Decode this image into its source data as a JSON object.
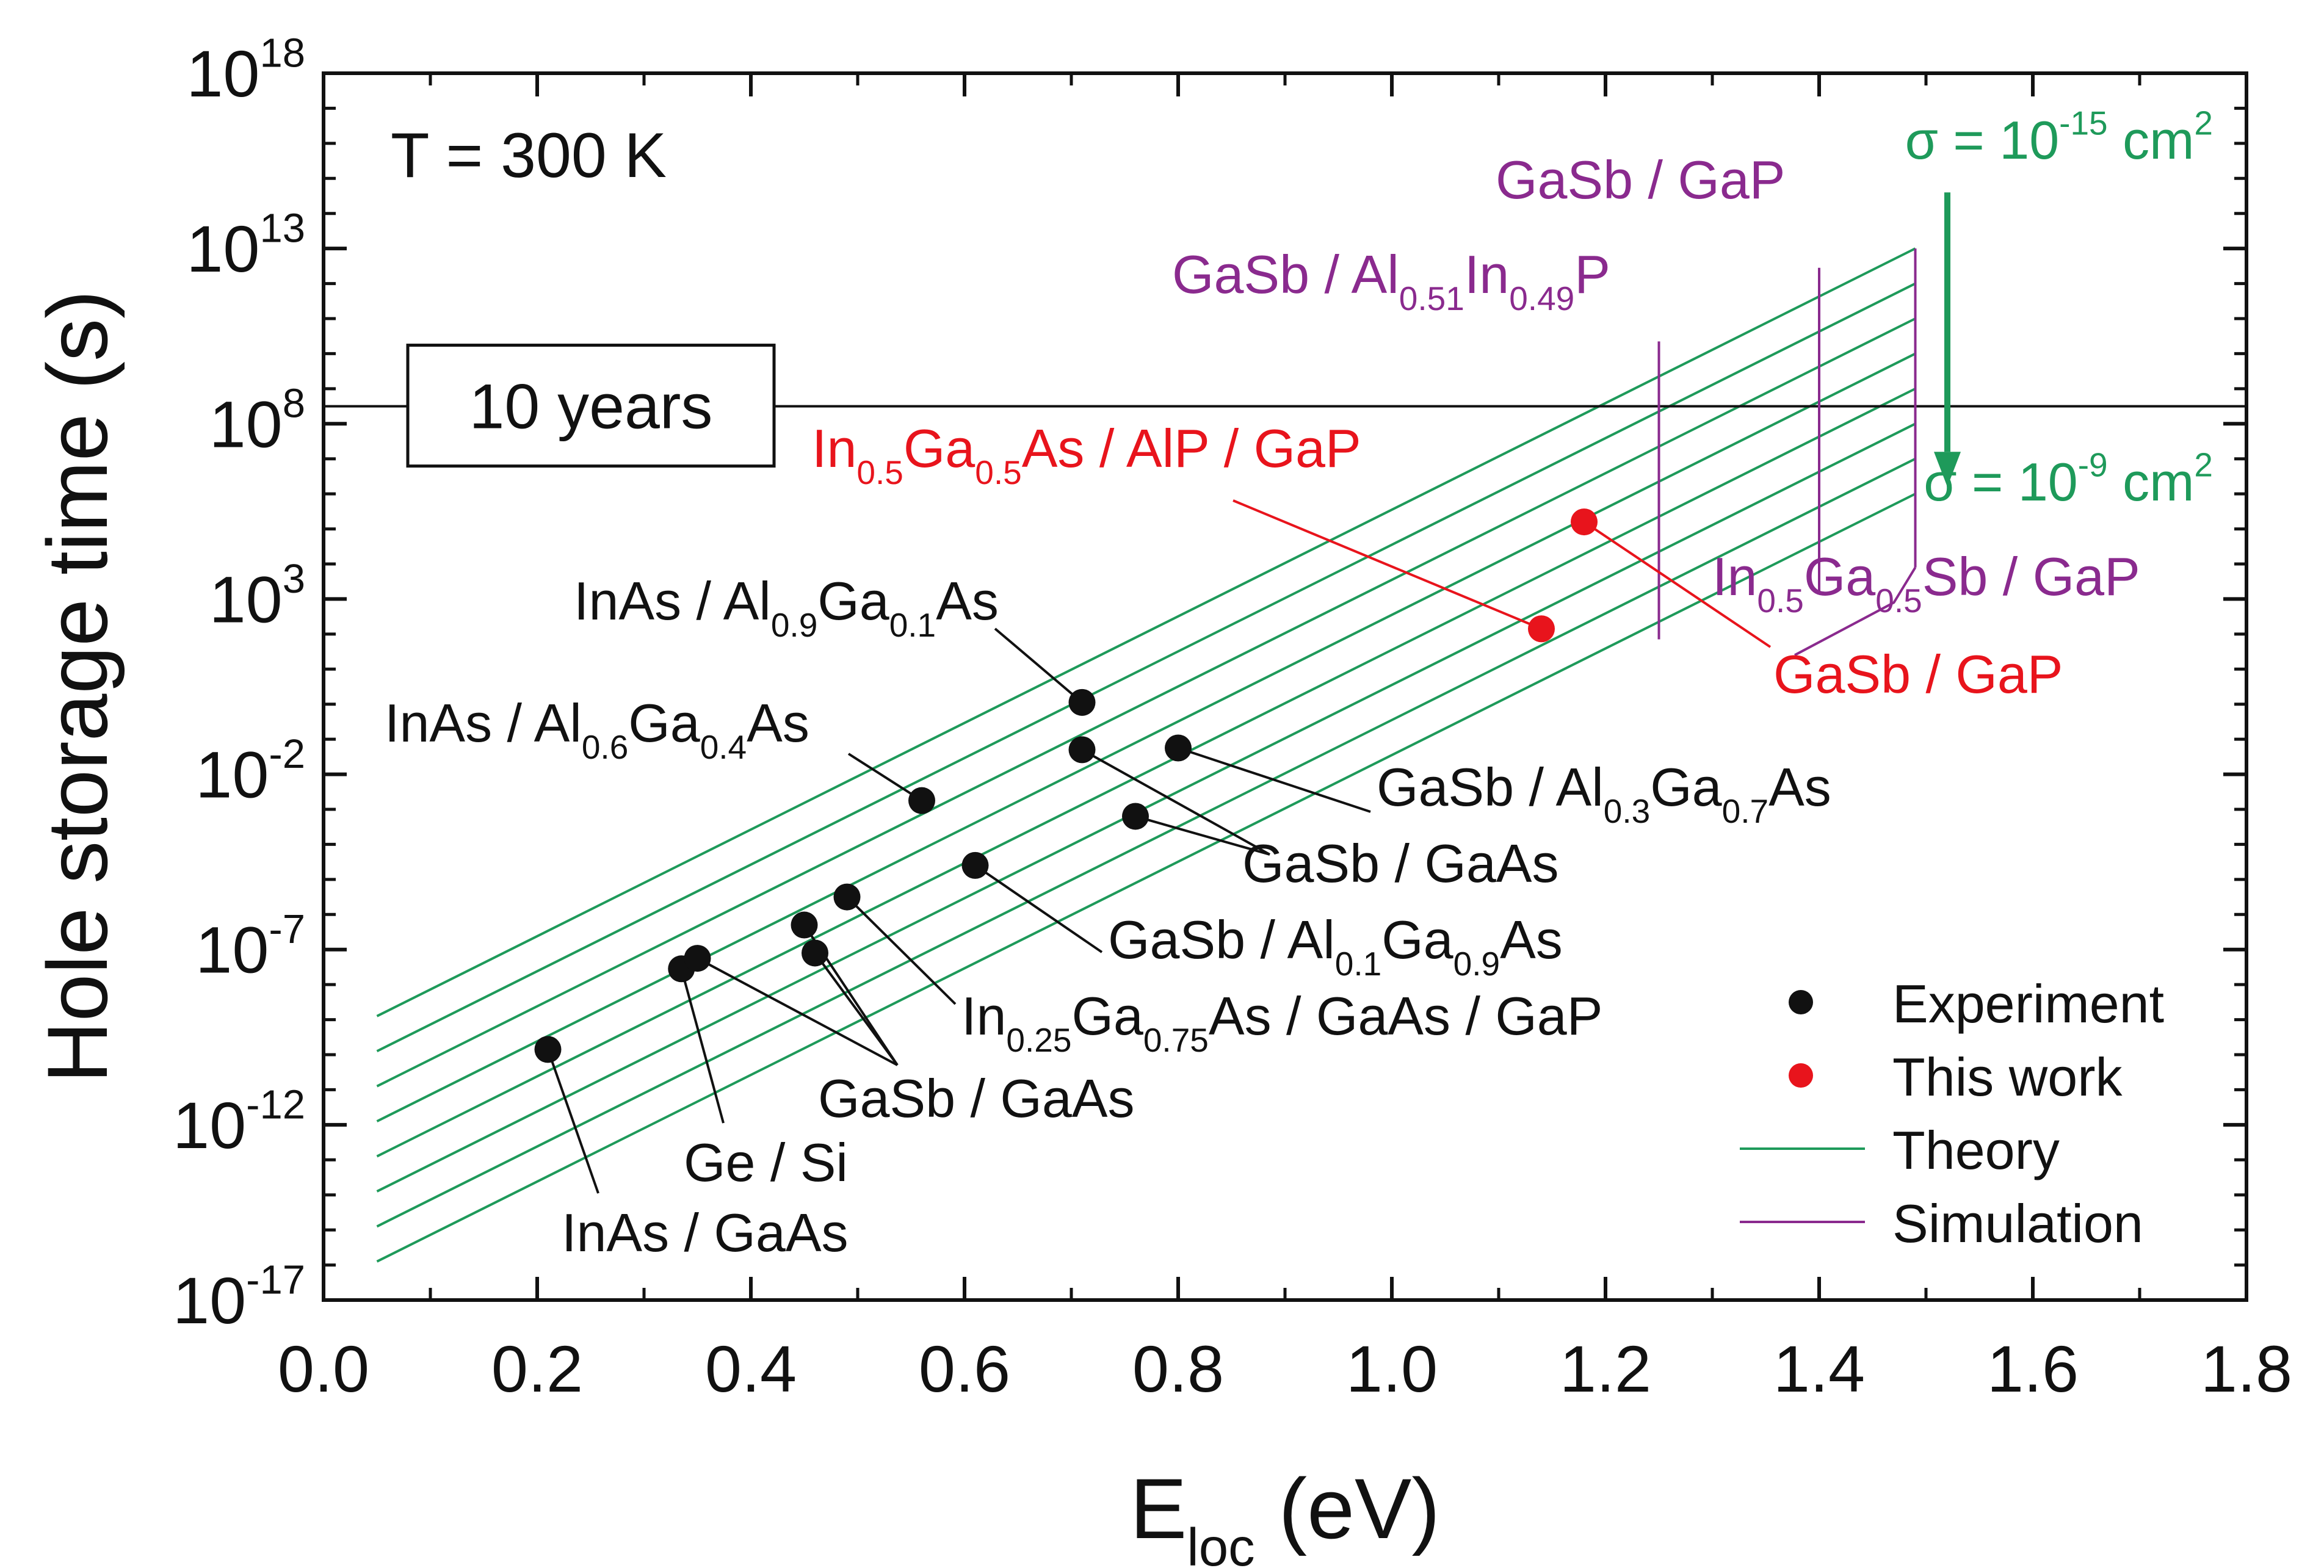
{
  "chart_data": {
    "type": "scatter",
    "title": "",
    "xlabel": {
      "main": "E",
      "sub": "loc",
      "rest": " (eV)"
    },
    "ylabel": "Hole storage time (s)",
    "xlim": [
      0.0,
      1.8
    ],
    "ylim_log10": [
      -17,
      18
    ],
    "y_scale": "log",
    "xticks": [
      "0.0",
      "0.2",
      "0.4",
      "0.6",
      "0.8",
      "1.0",
      "1.2",
      "1.4",
      "1.6",
      "1.8"
    ],
    "yticks": [
      {
        "base": "10",
        "exp": "18"
      },
      {
        "base": "10",
        "exp": "13"
      },
      {
        "base": "10",
        "exp": "8"
      },
      {
        "base": "10",
        "exp": "3"
      },
      {
        "base": "10",
        "exp": "-2"
      },
      {
        "base": "10",
        "exp": "-7"
      },
      {
        "base": "10",
        "exp": "-12"
      },
      {
        "base": "10",
        "exp": "-17"
      }
    ],
    "temperature_label": "T = 300 K",
    "ten_years_label": "10 years",
    "ten_years_log10": 8.5,
    "colors": {
      "experiment": "#111111",
      "this_work": "#e8141c",
      "theory": "#1e9a5a",
      "simulation": "#8a2a8e",
      "sigma": "#1e9a5a"
    },
    "legend": {
      "position": "lower-right",
      "items": [
        {
          "label": "Experiment",
          "kind": "dot",
          "color": "#111111"
        },
        {
          "label": "This work",
          "kind": "dot",
          "color": "#e8141c"
        },
        {
          "label": "Theory",
          "kind": "line",
          "color": "#1e9a5a"
        },
        {
          "label": "Simulation",
          "kind": "line",
          "color": "#8a2a8e"
        }
      ]
    },
    "theory_lines": {
      "x_range": [
        0.05,
        1.49
      ],
      "y_start_log10": [
        -8.9,
        -9.9,
        -10.9,
        -11.9,
        -12.9,
        -13.9,
        -14.9,
        -15.9
      ],
      "y_end_log10": [
        13.0,
        12.0,
        11.0,
        10.0,
        9.0,
        8.0,
        7.0,
        6.0
      ]
    },
    "sigma_top": {
      "text": "σ = 10",
      "exp": "-15",
      "unit": " cm",
      "unit_exp": "2"
    },
    "sigma_bottom": {
      "text": "σ = 10",
      "exp": "-9",
      "unit": " cm",
      "unit_exp": "2"
    },
    "simulation_lines": [
      {
        "x": 1.25,
        "y_log10": [
          1.85,
          10.35
        ]
      },
      {
        "x": 1.4,
        "y_log10": [
          3.2,
          12.45
        ]
      },
      {
        "x": 1.49,
        "y_log10": [
          3.9,
          13.0
        ]
      }
    ],
    "simulation_labels": [
      {
        "parts": [
          [
            "GaSb / Al",
            ""
          ],
          [
            "0.51",
            "sub"
          ],
          [
            "In",
            ""
          ],
          [
            "0.49",
            "sub"
          ],
          [
            "P",
            ""
          ]
        ]
      },
      {
        "parts": [
          [
            "GaSb / GaP",
            ""
          ]
        ]
      },
      {
        "parts": [
          [
            "In",
            ""
          ],
          [
            "0.5",
            "sub"
          ],
          [
            "Ga",
            ""
          ],
          [
            "0.5",
            "sub"
          ],
          [
            "Sb / GaP",
            ""
          ]
        ]
      }
    ],
    "experiment_points": [
      {
        "x": 0.21,
        "y_log10": -9.85
      },
      {
        "x": 0.335,
        "y_log10": -7.55
      },
      {
        "x": 0.35,
        "y_log10": -7.25
      },
      {
        "x": 0.45,
        "y_log10": -6.3
      },
      {
        "x": 0.46,
        "y_log10": -7.1
      },
      {
        "x": 0.49,
        "y_log10": -5.5
      },
      {
        "x": 0.56,
        "y_log10": -2.75
      },
      {
        "x": 0.61,
        "y_log10": -4.6
      },
      {
        "x": 0.71,
        "y_log10": 0.05
      },
      {
        "x": 0.71,
        "y_log10": -1.3
      },
      {
        "x": 0.76,
        "y_log10": -3.2
      },
      {
        "x": 0.8,
        "y_log10": -1.25
      }
    ],
    "this_work_points": [
      {
        "x": 1.14,
        "y_log10": 2.15
      },
      {
        "x": 1.18,
        "y_log10": 5.2
      }
    ],
    "annotations": [
      {
        "id": "inas-gaas",
        "parts": [
          [
            "InAs / GaAs",
            ""
          ]
        ]
      },
      {
        "id": "ge-si",
        "parts": [
          [
            "Ge / Si",
            ""
          ]
        ]
      },
      {
        "id": "gasb-gaas-1",
        "parts": [
          [
            "GaSb / GaAs",
            ""
          ]
        ]
      },
      {
        "id": "in25",
        "parts": [
          [
            "In",
            ""
          ],
          [
            "0.25",
            "sub"
          ],
          [
            "Ga",
            ""
          ],
          [
            "0.75",
            "sub"
          ],
          [
            "As / GaAs / GaP",
            ""
          ]
        ]
      },
      {
        "id": "gasb-al01",
        "parts": [
          [
            "GaSb / Al",
            ""
          ],
          [
            "0.1",
            "sub"
          ],
          [
            "Ga",
            ""
          ],
          [
            "0.9",
            "sub"
          ],
          [
            "As",
            ""
          ]
        ]
      },
      {
        "id": "gasb-gaas-2",
        "parts": [
          [
            "GaSb / GaAs",
            ""
          ]
        ]
      },
      {
        "id": "gasb-al03",
        "parts": [
          [
            "GaSb / Al",
            ""
          ],
          [
            "0.3",
            "sub"
          ],
          [
            "Ga",
            ""
          ],
          [
            "0.7",
            "sub"
          ],
          [
            "As",
            ""
          ]
        ]
      },
      {
        "id": "inas-al06",
        "parts": [
          [
            "InAs / Al",
            ""
          ],
          [
            "0.6",
            "sub"
          ],
          [
            "Ga",
            ""
          ],
          [
            "0.4",
            "sub"
          ],
          [
            "As",
            ""
          ]
        ]
      },
      {
        "id": "inas-al09",
        "parts": [
          [
            "InAs / Al",
            ""
          ],
          [
            "0.9",
            "sub"
          ],
          [
            "Ga",
            ""
          ],
          [
            "0.1",
            "sub"
          ],
          [
            "As",
            ""
          ]
        ]
      },
      {
        "id": "in05-alp",
        "parts": [
          [
            "In",
            ""
          ],
          [
            "0.5",
            "sub"
          ],
          [
            "Ga",
            ""
          ],
          [
            "0.5",
            "sub"
          ],
          [
            "As / AlP / GaP",
            ""
          ]
        ]
      },
      {
        "id": "gasb-gap-red",
        "parts": [
          [
            "GaSb / GaP",
            ""
          ]
        ]
      }
    ]
  }
}
